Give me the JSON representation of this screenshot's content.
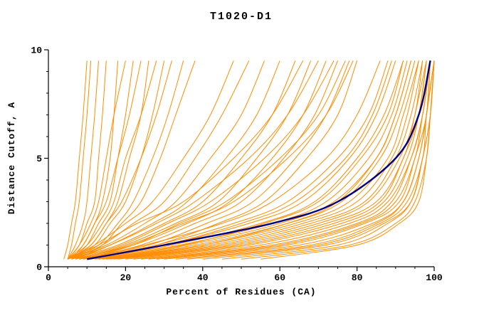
{
  "chart_data": {
    "type": "line",
    "title": "T1020-D1",
    "xlabel": "Percent of Residues (CA)",
    "ylabel": "Distance Cutoff, A",
    "xlim": [
      0,
      100
    ],
    "ylim": [
      0,
      10
    ],
    "x_ticks": [
      0,
      20,
      40,
      60,
      80,
      100
    ],
    "y_ticks": [
      0,
      5,
      10
    ],
    "x_minor_step": 5,
    "y_minor_step": 1,
    "grid": false,
    "legend": "none",
    "colors": {
      "model": "#ff8c00",
      "highlight": "#000080",
      "axis": "#000000",
      "background": "#ffffff",
      "text": "#000000"
    },
    "cutoff_levels": [
      0.35,
      1,
      2,
      3,
      5,
      7,
      9.5
    ],
    "series": [
      {
        "name": "highlighted-model",
        "color": "#000080",
        "width": 2.4,
        "x": [
          10,
          30,
          58,
          75,
          90,
          96,
          99
        ]
      }
    ],
    "model_curves_x": [
      [
        5,
        7,
        9,
        10,
        11,
        12,
        13
      ],
      [
        5,
        8,
        10,
        12,
        13,
        14,
        15
      ],
      [
        6,
        9,
        12,
        14,
        16,
        17,
        18
      ],
      [
        5,
        8,
        11,
        13,
        15,
        17,
        20
      ],
      [
        6,
        10,
        13,
        16,
        18,
        20,
        22
      ],
      [
        5,
        9,
        12,
        15,
        18,
        21,
        24
      ],
      [
        6,
        11,
        15,
        18,
        21,
        24,
        26
      ],
      [
        5,
        10,
        14,
        17,
        20,
        24,
        28
      ],
      [
        6,
        12,
        16,
        20,
        24,
        27,
        30
      ],
      [
        5,
        11,
        15,
        19,
        24,
        28,
        32
      ],
      [
        6,
        13,
        18,
        22,
        27,
        31,
        35
      ],
      [
        7,
        14,
        19,
        24,
        29,
        33,
        38
      ],
      [
        5,
        6,
        7,
        8,
        9,
        10,
        11
      ],
      [
        4,
        5,
        6,
        7,
        8,
        9,
        10
      ],
      [
        5,
        12,
        20,
        27,
        35,
        42,
        48
      ],
      [
        6,
        14,
        22,
        30,
        38,
        45,
        52
      ],
      [
        5,
        15,
        25,
        33,
        42,
        50,
        56
      ],
      [
        7,
        16,
        27,
        36,
        46,
        54,
        60
      ],
      [
        6,
        18,
        30,
        40,
        50,
        58,
        64
      ],
      [
        8,
        20,
        33,
        44,
        54,
        62,
        68
      ],
      [
        7,
        22,
        36,
        47,
        58,
        66,
        72
      ],
      [
        9,
        24,
        38,
        50,
        61,
        69,
        75
      ],
      [
        8,
        26,
        41,
        53,
        64,
        72,
        78
      ],
      [
        10,
        28,
        44,
        56,
        67,
        75,
        80
      ],
      [
        5,
        13,
        23,
        35,
        48,
        58,
        66
      ],
      [
        6,
        16,
        28,
        38,
        52,
        62,
        70
      ],
      [
        7,
        19,
        31,
        42,
        56,
        66,
        74
      ],
      [
        9,
        22,
        34,
        46,
        60,
        70,
        77
      ],
      [
        8,
        21,
        35,
        48,
        62,
        72,
        79
      ],
      [
        8,
        25,
        45,
        58,
        72,
        80,
        86
      ],
      [
        9,
        28,
        48,
        62,
        75,
        83,
        88
      ],
      [
        10,
        30,
        52,
        66,
        78,
        85,
        90
      ],
      [
        10,
        32,
        55,
        69,
        80,
        87,
        92
      ],
      [
        11,
        34,
        58,
        72,
        83,
        89,
        93
      ],
      [
        12,
        36,
        60,
        74,
        85,
        90,
        94
      ],
      [
        12,
        38,
        62,
        76,
        86,
        91,
        95
      ],
      [
        13,
        40,
        64,
        78,
        88,
        92,
        96
      ],
      [
        14,
        42,
        66,
        80,
        89,
        93,
        96
      ],
      [
        15,
        44,
        68,
        82,
        90,
        94,
        97
      ],
      [
        16,
        46,
        70,
        83,
        91,
        95,
        97
      ],
      [
        17,
        48,
        72,
        85,
        92,
        95,
        98
      ],
      [
        18,
        50,
        74,
        86,
        92,
        96,
        98
      ],
      [
        20,
        52,
        76,
        87,
        93,
        96,
        98
      ],
      [
        22,
        55,
        78,
        88,
        94,
        97,
        99
      ],
      [
        24,
        58,
        80,
        89,
        94,
        97,
        99
      ],
      [
        26,
        60,
        81,
        90,
        95,
        97,
        99
      ],
      [
        28,
        62,
        82,
        91,
        95,
        98,
        99
      ],
      [
        30,
        65,
        84,
        92,
        96,
        98,
        99
      ],
      [
        33,
        68,
        85,
        92,
        96,
        98,
        100
      ],
      [
        36,
        70,
        86,
        93,
        97,
        98,
        100
      ],
      [
        40,
        72,
        87,
        94,
        97,
        99,
        100
      ],
      [
        45,
        75,
        88,
        94,
        97,
        99,
        100
      ],
      [
        50,
        78,
        90,
        95,
        98,
        99,
        100
      ],
      [
        55,
        80,
        91,
        96,
        98,
        99,
        100
      ],
      [
        11,
        30,
        50,
        64,
        77,
        84,
        89
      ],
      [
        13,
        35,
        56,
        70,
        81,
        88,
        92
      ],
      [
        15,
        40,
        62,
        75,
        85,
        90,
        94
      ]
    ]
  }
}
